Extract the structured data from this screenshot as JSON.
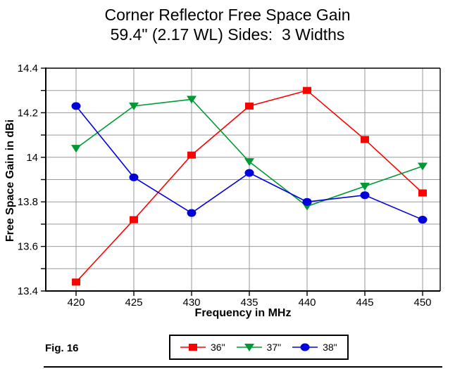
{
  "title": {
    "line1": "Corner Reflector Free Space Gain",
    "line2": "59.4\" (2.17 WL) Sides:  3 Widths"
  },
  "figure_label": "Fig. 16",
  "chart_data": {
    "type": "line",
    "x": [
      420,
      425,
      430,
      435,
      440,
      445,
      450
    ],
    "x_tick_labels": [
      "420",
      "425",
      "430",
      "435",
      "440",
      "445",
      "450"
    ],
    "y_tick_labels": [
      "13.4",
      "13.6",
      "13.8",
      "14",
      "14.2",
      "14.4"
    ],
    "xlabel": "Frequency in MHz",
    "ylabel": "Free Space Gain in dBi",
    "ylim": [
      13.4,
      14.4
    ],
    "ytick_minor_step": 0.1,
    "ytick_label_step": 0.2,
    "grid": true,
    "legend_position": "bottom-center",
    "series": [
      {
        "name": "36\"",
        "marker": "square",
        "color": "#ff0000",
        "values": [
          13.44,
          13.72,
          14.01,
          14.23,
          14.3,
          14.08,
          13.84
        ]
      },
      {
        "name": "37\"",
        "marker": "triangle-down",
        "color": "#009933",
        "values": [
          14.04,
          14.23,
          14.26,
          13.98,
          13.78,
          13.87,
          13.96
        ]
      },
      {
        "name": "38\"",
        "marker": "circle",
        "color": "#0000dd",
        "values": [
          14.23,
          13.91,
          13.75,
          13.93,
          13.8,
          13.83,
          13.72
        ]
      }
    ]
  },
  "colors": {
    "grid": "#9a9a9a",
    "axis": "#000000",
    "tick_text": "#000000"
  }
}
